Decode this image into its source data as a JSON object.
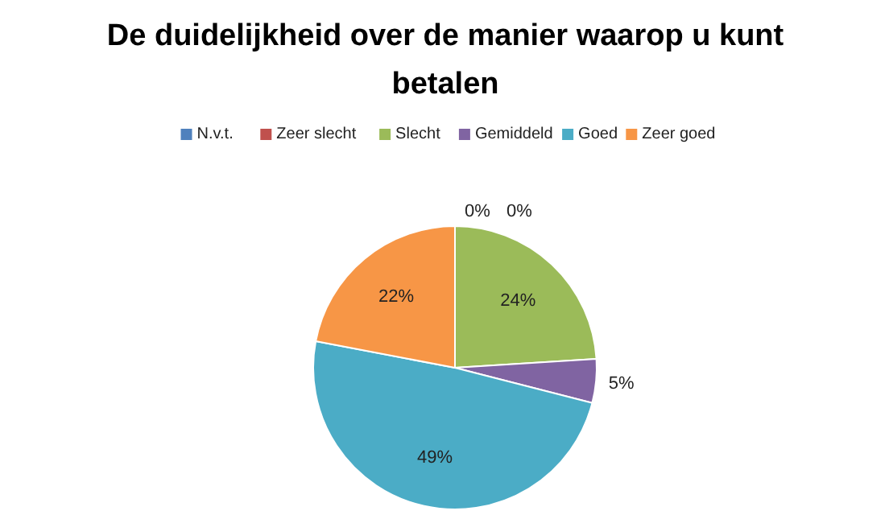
{
  "chart_data": {
    "type": "pie",
    "title": "De duidelijkheid over de manier waarop u kunt betalen",
    "categories": [
      "N.v.t.",
      "Zeer slecht",
      "Slecht",
      "Gemiddeld",
      "Goed",
      "Zeer goed"
    ],
    "values": [
      0,
      0,
      24,
      5,
      49,
      22
    ],
    "colors": [
      "#4f81bd",
      "#c0504d",
      "#9bbb59",
      "#8064a2",
      "#4bacc6",
      "#f79646"
    ],
    "value_labels": [
      "0%",
      "0%",
      "24%",
      "5%",
      "49%",
      "22%"
    ],
    "legend": "top"
  }
}
